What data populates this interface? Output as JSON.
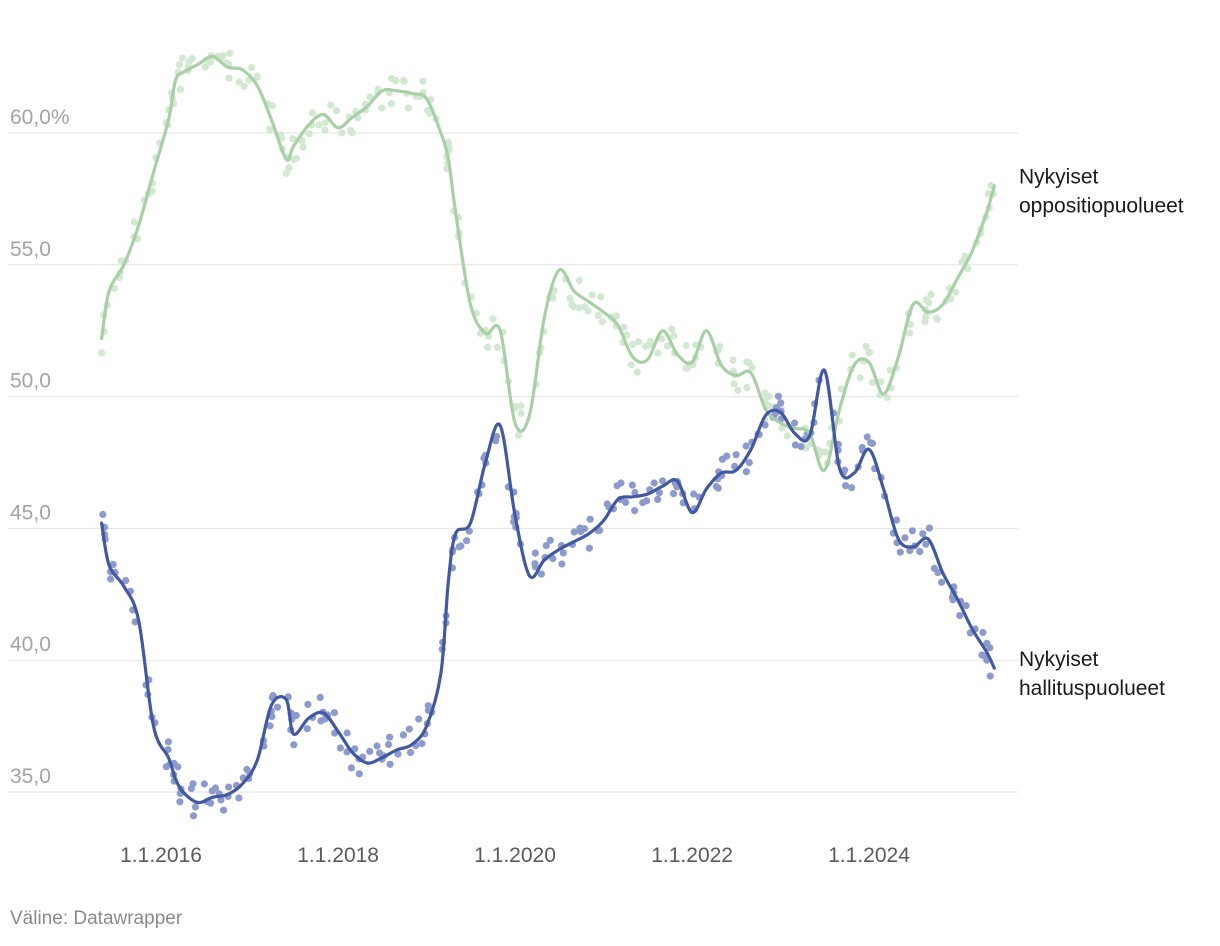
{
  "chart_data": {
    "type": "line",
    "title": "",
    "xlabel": "",
    "ylabel": "",
    "y_unit": "%",
    "ylim": [
      33.5,
      62
    ],
    "xlim": [
      "2015-05-01",
      "2025-06-15"
    ],
    "y_ticks": [
      {
        "value": 60,
        "label": "60,0%"
      },
      {
        "value": 55,
        "label": "55,0"
      },
      {
        "value": 50,
        "label": "50,0"
      },
      {
        "value": 45,
        "label": "45,0"
      },
      {
        "value": 40,
        "label": "40,0"
      },
      {
        "value": 35,
        "label": "35,0"
      }
    ],
    "x_ticks": [
      {
        "value": "2016-01-01",
        "label": "1.1.2016"
      },
      {
        "value": "2018-01-01",
        "label": "1.1.2018"
      },
      {
        "value": "2020-01-01",
        "label": "1.1.2020"
      },
      {
        "value": "2022-01-01",
        "label": "1.1.2022"
      },
      {
        "value": "2024-01-01",
        "label": "1.1.2024"
      }
    ],
    "grid": true,
    "legend": "direct labels at line ends (right)",
    "series": [
      {
        "name": "Nykyiset oppositiopuolueet",
        "label_lines": [
          "Nykyiset",
          "oppositiopuolueet"
        ],
        "color": "#a8cfa6",
        "dot_color": "#d2e8d1",
        "x": [
          "2015-05-01",
          "2015-06-01",
          "2015-08-01",
          "2015-10-01",
          "2015-12-01",
          "2016-02-01",
          "2016-03-01",
          "2016-04-01",
          "2016-06-01",
          "2016-08-01",
          "2016-10-01",
          "2016-12-01",
          "2017-02-01",
          "2017-04-01",
          "2017-06-01",
          "2017-07-01",
          "2017-09-01",
          "2017-11-01",
          "2018-01-01",
          "2018-03-01",
          "2018-05-01",
          "2018-07-01",
          "2018-09-01",
          "2018-11-01",
          "2019-01-01",
          "2019-03-01",
          "2019-04-01",
          "2019-05-01",
          "2019-07-01",
          "2019-09-01",
          "2019-11-01",
          "2020-01-01",
          "2020-03-01",
          "2020-05-01",
          "2020-07-01",
          "2020-09-01",
          "2020-11-01",
          "2021-01-01",
          "2021-03-01",
          "2021-05-01",
          "2021-07-01",
          "2021-09-01",
          "2021-11-01",
          "2022-01-01",
          "2022-03-01",
          "2022-05-01",
          "2022-07-01",
          "2022-09-01",
          "2022-11-01",
          "2023-01-01",
          "2023-03-01",
          "2023-05-01",
          "2023-07-01",
          "2023-09-01",
          "2023-11-01",
          "2024-01-01",
          "2024-03-01",
          "2024-05-01",
          "2024-07-01",
          "2024-09-01",
          "2024-11-01",
          "2025-01-01",
          "2025-03-01",
          "2025-05-01",
          "2025-06-01"
        ],
        "values": [
          52.2,
          54.0,
          55.0,
          56.5,
          58.5,
          60.5,
          62.0,
          62.3,
          62.6,
          62.9,
          62.5,
          62.4,
          61.8,
          60.5,
          59.0,
          59.5,
          60.3,
          60.7,
          60.2,
          60.6,
          61.0,
          61.6,
          61.6,
          61.5,
          61.3,
          60.0,
          59.0,
          57.0,
          53.5,
          52.4,
          52.5,
          49.0,
          49.3,
          53.0,
          54.8,
          54.0,
          53.6,
          53.2,
          52.7,
          51.5,
          51.4,
          52.5,
          51.6,
          51.3,
          52.5,
          51.2,
          50.8,
          50.9,
          49.5,
          49.0,
          48.8,
          48.6,
          47.2,
          49.5,
          51.2,
          51.3,
          50.1,
          51.5,
          53.5,
          53.2,
          53.5,
          54.5,
          55.5,
          57.0,
          58.0
        ]
      },
      {
        "name": "Nykyiset hallituspuolueet",
        "label_lines": [
          "Nykyiset",
          "hallituspuolueet"
        ],
        "color": "#4258a0",
        "dot_color": "#8d9acc",
        "x": [
          "2015-05-01",
          "2015-06-01",
          "2015-08-01",
          "2015-10-01",
          "2015-12-01",
          "2016-02-01",
          "2016-03-01",
          "2016-04-01",
          "2016-06-01",
          "2016-08-01",
          "2016-10-01",
          "2016-12-01",
          "2017-02-01",
          "2017-04-01",
          "2017-06-01",
          "2017-07-01",
          "2017-09-01",
          "2017-11-01",
          "2018-01-01",
          "2018-03-01",
          "2018-05-01",
          "2018-07-01",
          "2018-09-01",
          "2018-11-01",
          "2019-01-01",
          "2019-03-01",
          "2019-04-01",
          "2019-05-01",
          "2019-07-01",
          "2019-09-01",
          "2019-11-01",
          "2020-01-01",
          "2020-03-01",
          "2020-05-01",
          "2020-07-01",
          "2020-09-01",
          "2020-11-01",
          "2021-01-01",
          "2021-03-01",
          "2021-05-01",
          "2021-07-01",
          "2021-09-01",
          "2021-11-01",
          "2022-01-01",
          "2022-03-01",
          "2022-05-01",
          "2022-07-01",
          "2022-09-01",
          "2022-11-01",
          "2023-01-01",
          "2023-03-01",
          "2023-05-01",
          "2023-07-01",
          "2023-09-01",
          "2023-11-01",
          "2024-01-01",
          "2024-03-01",
          "2024-05-01",
          "2024-07-01",
          "2024-09-01",
          "2024-11-01",
          "2025-01-01",
          "2025-03-01",
          "2025-05-01",
          "2025-06-01"
        ],
        "values": [
          45.2,
          43.6,
          42.8,
          41.5,
          37.5,
          36.3,
          35.5,
          35.0,
          34.6,
          34.8,
          34.9,
          35.3,
          36.2,
          38.3,
          38.5,
          37.2,
          37.8,
          38.0,
          37.3,
          36.5,
          36.1,
          36.3,
          36.6,
          36.8,
          37.5,
          39.5,
          43.0,
          44.8,
          45.2,
          47.5,
          48.9,
          45.5,
          43.2,
          43.8,
          44.2,
          44.5,
          44.8,
          45.3,
          46.1,
          46.2,
          46.3,
          46.6,
          46.8,
          45.6,
          46.5,
          47.1,
          47.2,
          48.0,
          49.3,
          49.4,
          48.6,
          48.5,
          51.0,
          47.3,
          47.1,
          48.0,
          46.5,
          44.6,
          44.3,
          44.6,
          43.3,
          42.3,
          41.2,
          40.3,
          39.7
        ]
      }
    ],
    "source_note": "Väline: Datawrapper"
  }
}
